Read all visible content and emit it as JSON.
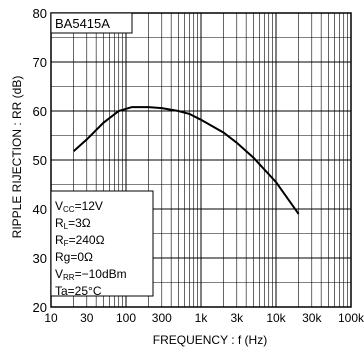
{
  "chart_data": {
    "type": "line",
    "title": "BA5415A",
    "xlabel": "FREQUENCY : f (Hz)",
    "ylabel": "RIPPLE  RIJECTION : RR (dB)",
    "x_scale": "log",
    "xlim": [
      10,
      100000
    ],
    "ylim": [
      20,
      80
    ],
    "grid": true,
    "x_ticks": [
      10,
      30,
      100,
      300,
      1000,
      3000,
      10000,
      30000,
      100000
    ],
    "x_tick_labels": [
      "10",
      "30",
      "100",
      "300",
      "1k",
      "3k",
      "10k",
      "30k",
      "100k"
    ],
    "y_ticks": [
      20,
      30,
      40,
      50,
      60,
      70,
      80
    ],
    "y_tick_labels": [
      "20",
      "30",
      "40",
      "50",
      "60",
      "70",
      "80"
    ],
    "annotation_box": [
      "VCC=12V",
      "RL=3Ω",
      "RF=240Ω",
      "Rg=0Ω",
      "VRR=−10dBm",
      "Ta=25°C"
    ],
    "series": [
      {
        "x": [
          20,
          30,
          50,
          80,
          120,
          200,
          300,
          500,
          700,
          1000,
          2000,
          3000,
          5000,
          10000,
          20000
        ],
        "y": [
          51.8,
          54.2,
          57.6,
          60.0,
          60.8,
          60.8,
          60.6,
          60.0,
          59.4,
          58.2,
          55.6,
          53.5,
          50.5,
          45.5,
          39.0
        ]
      }
    ]
  }
}
